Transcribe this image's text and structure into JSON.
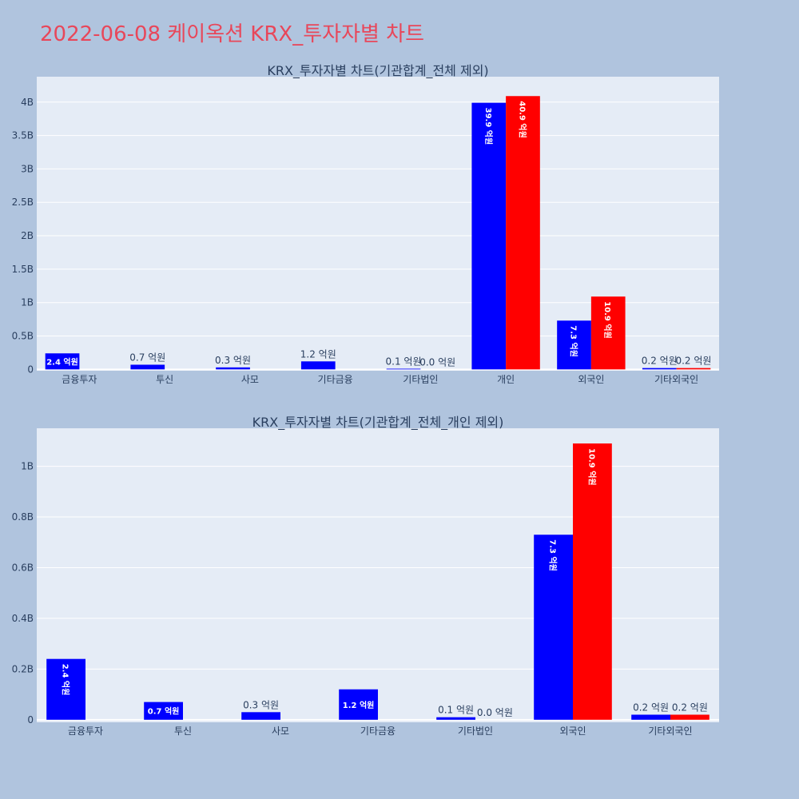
{
  "title": "2022-06-08 케이옥션 KRX_투자자별 차트",
  "colors": {
    "buy": "#0000ff",
    "sell": "#ff0000",
    "plot_bg": "#e5ecf6",
    "page_bg": "#b0c4de",
    "title": "#e8475a"
  },
  "chart_data": [
    {
      "type": "bar",
      "title": "KRX_투자자별 차트(기관합계_전체 제외)",
      "categories": [
        "금융투자",
        "투신",
        "사모",
        "기타금융",
        "기타법인",
        "개인",
        "외국인",
        "기타외국인"
      ],
      "series": [
        {
          "color": "#0000ff",
          "values": [
            240000000,
            70000000,
            30000000,
            120000000,
            10000000,
            3990000000,
            730000000,
            20000000
          ],
          "labels": [
            "2.4 억원",
            "0.7 억원",
            "0.3 억원",
            "1.2 억원",
            "0.1 억원",
            "39.9 억원",
            "7.3 억원",
            "0.2 억원"
          ]
        },
        {
          "color": "#ff0000",
          "values": [
            0,
            0,
            0,
            0,
            0,
            4090000000,
            1090000000,
            20000000
          ],
          "labels": [
            "",
            "",
            "",
            "",
            "0.0 억원",
            "40.9 억원",
            "10.9 억원",
            "0.2 억원"
          ]
        }
      ],
      "yticks": [
        {
          "v": 0,
          "t": "0"
        },
        {
          "v": 500000000,
          "t": "0.5B"
        },
        {
          "v": 1000000000,
          "t": "1B"
        },
        {
          "v": 1500000000,
          "t": "1.5B"
        },
        {
          "v": 2000000000,
          "t": "2B"
        },
        {
          "v": 2500000000,
          "t": "2.5B"
        },
        {
          "v": 3000000000,
          "t": "3B"
        },
        {
          "v": 3500000000,
          "t": "3.5B"
        },
        {
          "v": 4000000000,
          "t": "4B"
        }
      ],
      "ylim": [
        -20000000,
        4380000000
      ],
      "grid": true
    },
    {
      "type": "bar",
      "title": "KRX_투자자별 차트(기관합계_전체_개인 제외)",
      "categories": [
        "금융투자",
        "투신",
        "사모",
        "기타금융",
        "기타법인",
        "외국인",
        "기타외국인"
      ],
      "series": [
        {
          "color": "#0000ff",
          "values": [
            240000000,
            70000000,
            30000000,
            120000000,
            10000000,
            730000000,
            20000000
          ],
          "labels": [
            "2.4 억원",
            "0.7 억원",
            "0.3 억원",
            "1.2 억원",
            "0.1 억원",
            "7.3 억원",
            "0.2 억원"
          ]
        },
        {
          "color": "#ff0000",
          "values": [
            0,
            0,
            0,
            0,
            0,
            1090000000,
            20000000
          ],
          "labels": [
            "",
            "",
            "",
            "",
            "0.0 억원",
            "10.9 억원",
            "0.2 억원"
          ]
        }
      ],
      "yticks": [
        {
          "v": 0,
          "t": "0"
        },
        {
          "v": 200000000,
          "t": "0.2B"
        },
        {
          "v": 400000000,
          "t": "0.4B"
        },
        {
          "v": 600000000,
          "t": "0.6B"
        },
        {
          "v": 800000000,
          "t": "0.8B"
        },
        {
          "v": 1000000000,
          "t": "1B"
        }
      ],
      "ylim": [
        -10000000,
        1150000000
      ],
      "grid": true
    }
  ]
}
